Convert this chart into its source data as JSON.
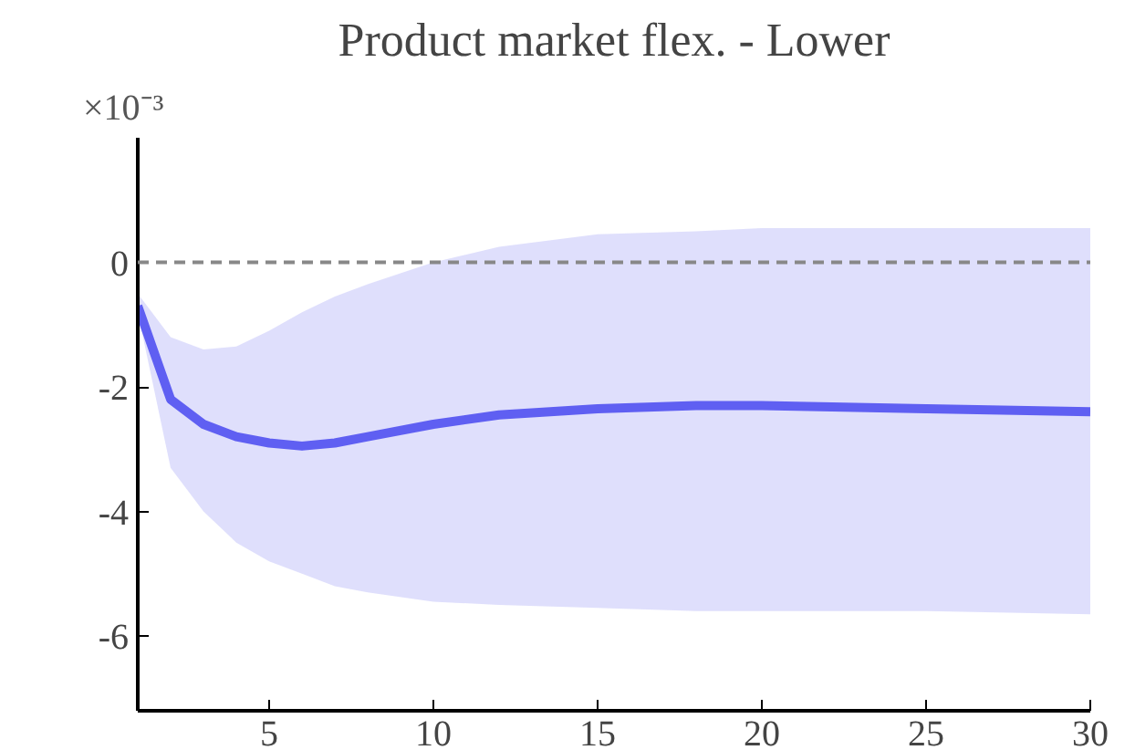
{
  "chart_data": {
    "type": "line",
    "title": "Product market flex. - Lower",
    "annotations": [
      "×10⁻³"
    ],
    "x": [
      1,
      2,
      3,
      4,
      5,
      6,
      7,
      8,
      10,
      12,
      15,
      18,
      20,
      25,
      30
    ],
    "series": [
      {
        "color": "#5f5ff2",
        "values": [
          -0.7,
          -2.2,
          -2.6,
          -2.8,
          -2.9,
          -2.95,
          -2.9,
          -2.8,
          -2.6,
          -2.45,
          -2.35,
          -2.3,
          -2.3,
          -2.35,
          -2.4
        ],
        "lower": [
          -0.8,
          -3.3,
          -4.0,
          -4.5,
          -4.8,
          -5.0,
          -5.2,
          -5.3,
          -5.45,
          -5.5,
          -5.55,
          -5.6,
          -5.6,
          -5.6,
          -5.65
        ],
        "upper": [
          -0.5,
          -1.2,
          -1.4,
          -1.35,
          -1.1,
          -0.8,
          -0.55,
          -0.35,
          0.0,
          0.25,
          0.45,
          0.5,
          0.55,
          0.55,
          0.55
        ]
      }
    ],
    "xlim": [
      1,
      30
    ],
    "xticks": [
      5,
      10,
      15,
      20,
      25,
      30
    ],
    "ylim": [
      -7.2,
      2
    ],
    "yticks": [
      -6,
      -4,
      -2,
      0
    ],
    "ref_lines": [
      {
        "axis": "y",
        "value": 0,
        "color": "#888888",
        "line_style": "dashed"
      }
    ],
    "grid": false
  }
}
